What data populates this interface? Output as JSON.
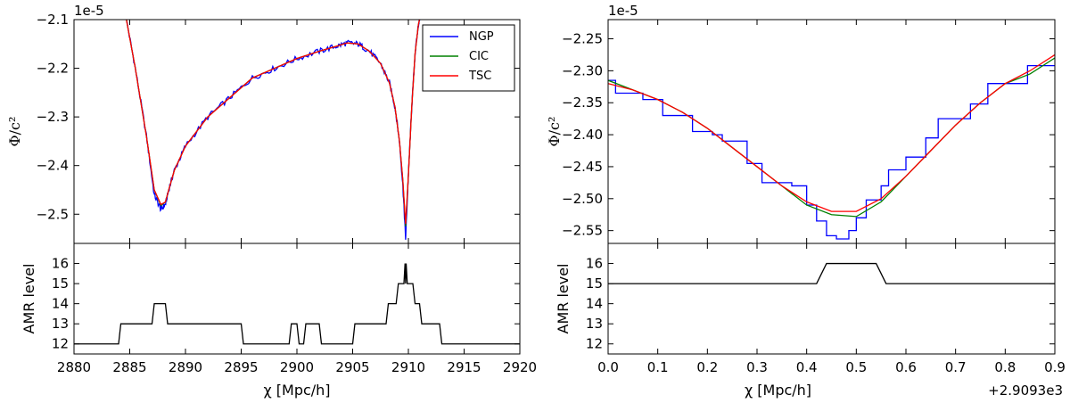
{
  "chart_data": [
    {
      "type": "line",
      "panel": "left-top",
      "title": "",
      "ylabel": "Φ/c²",
      "scale_label": "1e-5",
      "xlim": [
        2880,
        2920
      ],
      "ylim": [
        -2.56,
        -2.1
      ],
      "yticks": [
        -2.5,
        -2.4,
        -2.3,
        -2.2,
        -2.1
      ],
      "ytick_labels": [
        "−2.5",
        "−2.4",
        "−2.3",
        "−2.2",
        "−2.1"
      ],
      "legend": {
        "position": "top-right",
        "entries": [
          "NGP",
          "CIC",
          "TSC"
        ]
      },
      "series": [
        {
          "name": "NGP",
          "color": "#0000ff",
          "noisy": true,
          "x": [
            2884.7,
            2885.5,
            2886.5,
            2887.2,
            2887.8,
            2888.2,
            2888.5,
            2889.0,
            2890.0,
            2892.0,
            2894.0,
            2896.0,
            2898.0,
            2900.0,
            2902.0,
            2903.5,
            2904.5,
            2905.5,
            2906.5,
            2907.5,
            2908.3,
            2908.8,
            2909.2,
            2909.5,
            2909.75,
            2910.0,
            2910.3,
            2910.6,
            2910.9,
            2911.1
          ],
          "y": [
            -2.1,
            -2.2,
            -2.34,
            -2.46,
            -2.49,
            -2.48,
            -2.45,
            -2.41,
            -2.36,
            -2.3,
            -2.26,
            -2.22,
            -2.2,
            -2.18,
            -2.165,
            -2.155,
            -2.148,
            -2.15,
            -2.165,
            -2.19,
            -2.23,
            -2.28,
            -2.35,
            -2.44,
            -2.55,
            -2.42,
            -2.28,
            -2.17,
            -2.11,
            -2.09
          ]
        },
        {
          "name": "CIC",
          "color": "#008000",
          "noisy": false,
          "x": [
            2884.7,
            2885.5,
            2886.5,
            2887.2,
            2887.8,
            2888.2,
            2888.5,
            2889.0,
            2890.0,
            2892.0,
            2894.0,
            2896.0,
            2898.0,
            2900.0,
            2902.0,
            2903.5,
            2904.5,
            2905.5,
            2906.5,
            2907.5,
            2908.3,
            2908.8,
            2909.2,
            2909.5,
            2909.75,
            2910.0,
            2910.3,
            2910.6,
            2910.9,
            2911.1
          ],
          "y": [
            -2.1,
            -2.2,
            -2.34,
            -2.45,
            -2.482,
            -2.475,
            -2.45,
            -2.41,
            -2.36,
            -2.3,
            -2.26,
            -2.22,
            -2.2,
            -2.18,
            -2.165,
            -2.155,
            -2.148,
            -2.15,
            -2.165,
            -2.19,
            -2.23,
            -2.28,
            -2.35,
            -2.43,
            -2.525,
            -2.42,
            -2.28,
            -2.17,
            -2.11,
            -2.09
          ]
        },
        {
          "name": "TSC",
          "color": "#ff0000",
          "noisy": false,
          "x": [
            2884.7,
            2885.5,
            2886.5,
            2887.2,
            2887.8,
            2888.2,
            2888.5,
            2889.0,
            2890.0,
            2892.0,
            2894.0,
            2896.0,
            2898.0,
            2900.0,
            2902.0,
            2903.5,
            2904.5,
            2905.5,
            2906.5,
            2907.5,
            2908.3,
            2908.8,
            2909.2,
            2909.5,
            2909.75,
            2910.0,
            2910.3,
            2910.6,
            2910.9,
            2911.1
          ],
          "y": [
            -2.1,
            -2.2,
            -2.34,
            -2.45,
            -2.48,
            -2.475,
            -2.45,
            -2.41,
            -2.36,
            -2.3,
            -2.26,
            -2.22,
            -2.2,
            -2.18,
            -2.165,
            -2.155,
            -2.148,
            -2.15,
            -2.165,
            -2.19,
            -2.23,
            -2.28,
            -2.35,
            -2.43,
            -2.52,
            -2.42,
            -2.28,
            -2.17,
            -2.11,
            -2.09
          ]
        }
      ]
    },
    {
      "type": "line",
      "panel": "left-bottom",
      "xlabel": "χ [Mpc/h]",
      "ylabel": "AMR level",
      "xlim": [
        2880,
        2920
      ],
      "ylim": [
        11.5,
        17
      ],
      "xticks": [
        2880,
        2885,
        2890,
        2895,
        2900,
        2905,
        2910,
        2915,
        2920
      ],
      "xtick_labels": [
        "2880",
        "2885",
        "2890",
        "2895",
        "2900",
        "2905",
        "2910",
        "2915",
        "2920"
      ],
      "yticks": [
        12,
        13,
        14,
        15,
        16
      ],
      "ytick_labels": [
        "12",
        "13",
        "14",
        "15",
        "16"
      ],
      "series": [
        {
          "name": "AMR level",
          "color": "#000000",
          "x": [
            2880,
            2884,
            2884.2,
            2887,
            2887.2,
            2888.2,
            2888.4,
            2895,
            2895.2,
            2899.3,
            2899.5,
            2900,
            2900.2,
            2900.6,
            2900.8,
            2901.2,
            2901.4,
            2902,
            2902.2,
            2905,
            2905.2,
            2908,
            2908.2,
            2908.9,
            2909.1,
            2909.6,
            2909.7,
            2909.75,
            2909.8,
            2909.9,
            2910.0,
            2910.4,
            2910.6,
            2911.0,
            2911.2,
            2912.8,
            2913.0,
            2920
          ],
          "y": [
            12,
            12,
            13,
            13,
            14,
            14,
            13,
            13,
            12,
            12,
            13,
            13,
            12,
            12,
            13,
            13,
            13,
            13,
            12,
            12,
            13,
            13,
            14,
            14,
            15,
            15,
            16,
            15,
            16,
            15,
            15,
            15,
            14,
            14,
            13,
            13,
            12,
            12
          ]
        }
      ]
    },
    {
      "type": "line",
      "panel": "right-top",
      "ylabel": "Φ/c²",
      "scale_label": "1e-5",
      "xlim": [
        0.0,
        0.9
      ],
      "ylim": [
        -2.57,
        -2.22
      ],
      "yticks": [
        -2.55,
        -2.5,
        -2.45,
        -2.4,
        -2.35,
        -2.3,
        -2.25
      ],
      "ytick_labels": [
        "−2.55",
        "−2.50",
        "−2.45",
        "−2.40",
        "−2.35",
        "−2.30",
        "−2.25"
      ],
      "series": [
        {
          "name": "NGP",
          "color": "#0000ff",
          "x": [
            0.0,
            0.015,
            0.015,
            0.07,
            0.07,
            0.11,
            0.11,
            0.17,
            0.17,
            0.21,
            0.21,
            0.23,
            0.23,
            0.28,
            0.28,
            0.31,
            0.31,
            0.37,
            0.37,
            0.4,
            0.4,
            0.42,
            0.42,
            0.44,
            0.44,
            0.46,
            0.46,
            0.485,
            0.485,
            0.5,
            0.5,
            0.52,
            0.52,
            0.55,
            0.55,
            0.565,
            0.565,
            0.6,
            0.6,
            0.64,
            0.64,
            0.665,
            0.665,
            0.73,
            0.73,
            0.765,
            0.765,
            0.845,
            0.845,
            0.9
          ],
          "y": [
            -2.315,
            -2.315,
            -2.335,
            -2.335,
            -2.345,
            -2.345,
            -2.37,
            -2.37,
            -2.395,
            -2.395,
            -2.4,
            -2.4,
            -2.41,
            -2.41,
            -2.445,
            -2.445,
            -2.475,
            -2.475,
            -2.48,
            -2.48,
            -2.51,
            -2.51,
            -2.535,
            -2.535,
            -2.558,
            -2.558,
            -2.563,
            -2.563,
            -2.55,
            -2.55,
            -2.53,
            -2.53,
            -2.502,
            -2.502,
            -2.48,
            -2.48,
            -2.455,
            -2.455,
            -2.435,
            -2.435,
            -2.405,
            -2.405,
            -2.375,
            -2.375,
            -2.352,
            -2.352,
            -2.32,
            -2.32,
            -2.292,
            -2.292
          ]
        },
        {
          "name": "CIC",
          "color": "#008000",
          "x": [
            0.0,
            0.05,
            0.1,
            0.15,
            0.2,
            0.25,
            0.3,
            0.35,
            0.4,
            0.45,
            0.5,
            0.55,
            0.6,
            0.65,
            0.7,
            0.75,
            0.8,
            0.85,
            0.9
          ],
          "y": [
            -2.315,
            -2.33,
            -2.345,
            -2.365,
            -2.39,
            -2.42,
            -2.45,
            -2.48,
            -2.51,
            -2.525,
            -2.528,
            -2.505,
            -2.465,
            -2.425,
            -2.385,
            -2.35,
            -2.32,
            -2.305,
            -2.28
          ]
        },
        {
          "name": "TSC",
          "color": "#ff0000",
          "x": [
            0.0,
            0.05,
            0.1,
            0.15,
            0.2,
            0.25,
            0.3,
            0.35,
            0.4,
            0.45,
            0.5,
            0.55,
            0.6,
            0.65,
            0.7,
            0.75,
            0.8,
            0.85,
            0.9
          ],
          "y": [
            -2.32,
            -2.33,
            -2.345,
            -2.365,
            -2.39,
            -2.42,
            -2.45,
            -2.48,
            -2.505,
            -2.52,
            -2.52,
            -2.5,
            -2.465,
            -2.425,
            -2.385,
            -2.35,
            -2.32,
            -2.3,
            -2.275
          ]
        }
      ]
    },
    {
      "type": "line",
      "panel": "right-bottom",
      "xlabel": "χ [Mpc/h]",
      "offset_label": "+2.9093e3",
      "ylabel": "AMR level",
      "xlim": [
        0.0,
        0.9
      ],
      "ylim": [
        11.5,
        17
      ],
      "xticks": [
        0.0,
        0.1,
        0.2,
        0.3,
        0.4,
        0.5,
        0.6,
        0.7,
        0.8,
        0.9
      ],
      "xtick_labels": [
        "0.0",
        "0.1",
        "0.2",
        "0.3",
        "0.4",
        "0.5",
        "0.6",
        "0.7",
        "0.8",
        "0.9"
      ],
      "yticks": [
        12,
        13,
        14,
        15,
        16
      ],
      "ytick_labels": [
        "12",
        "13",
        "14",
        "15",
        "16"
      ],
      "series": [
        {
          "name": "AMR level",
          "color": "#000000",
          "x": [
            0.0,
            0.42,
            0.44,
            0.54,
            0.56,
            0.9
          ],
          "y": [
            15,
            15,
            16,
            16,
            15,
            15
          ]
        }
      ]
    }
  ]
}
